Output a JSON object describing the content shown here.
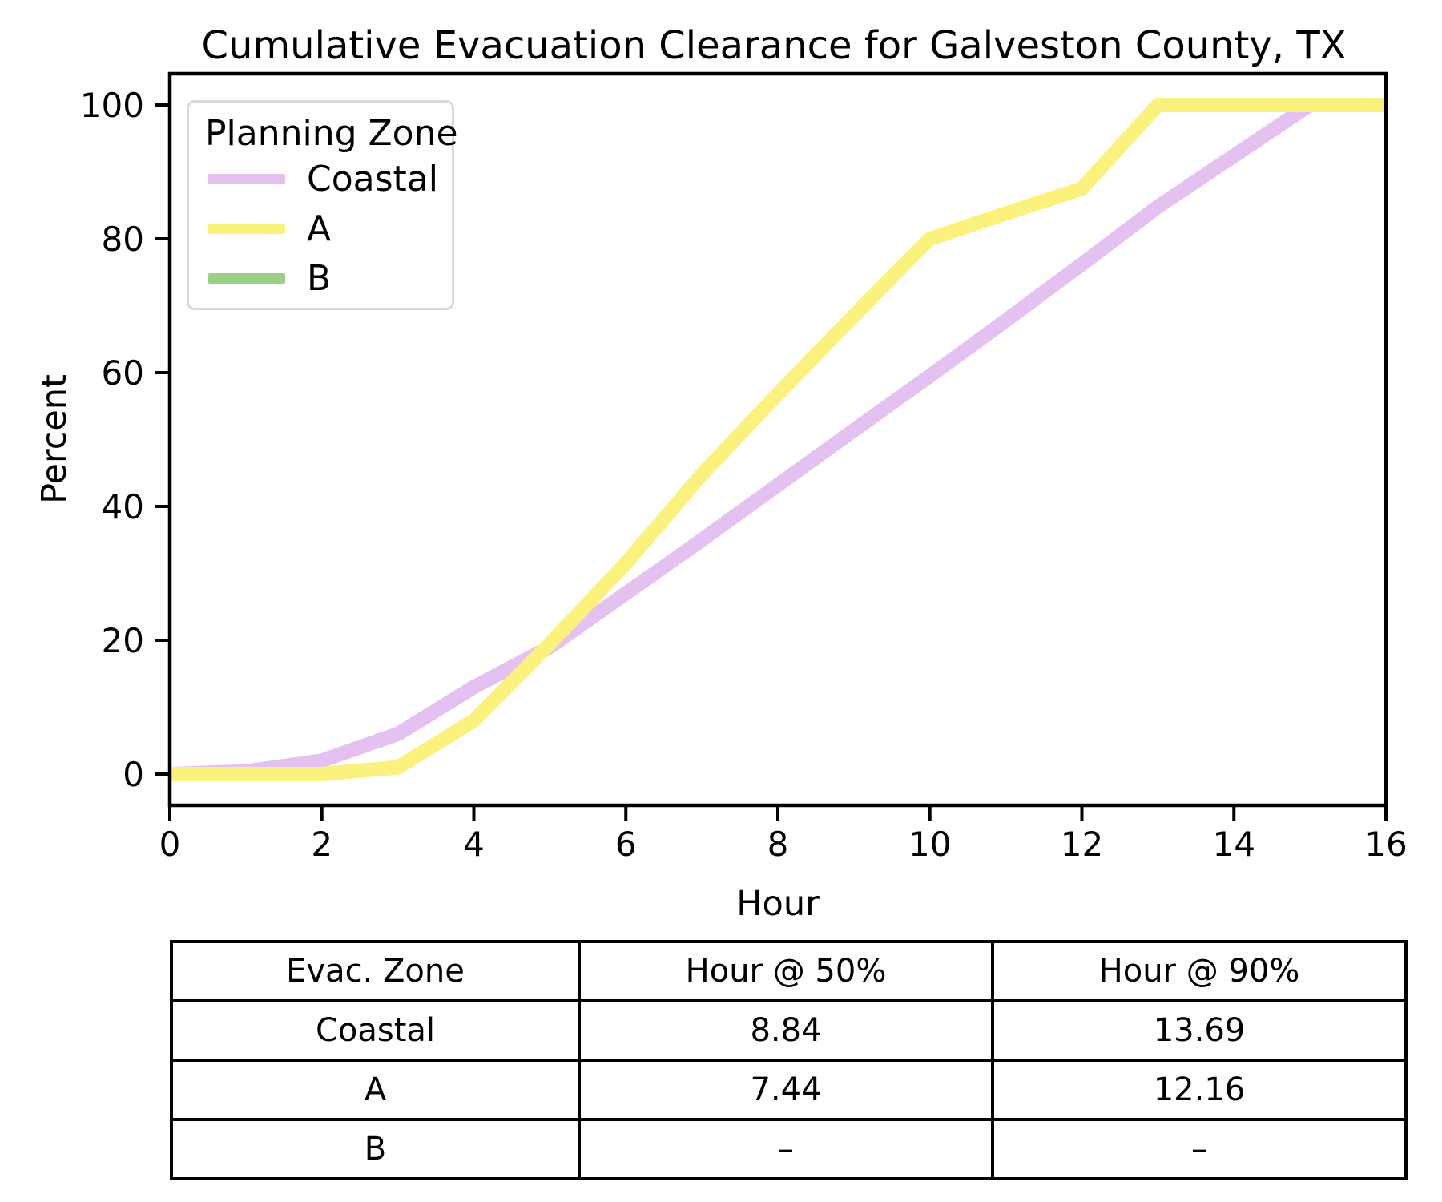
{
  "title": "Cumulative Evacuation Clearance for Galveston County, TX",
  "chart_data": {
    "type": "line",
    "title": "Cumulative Evacuation Clearance for Galveston County, TX",
    "xlabel": "Hour",
    "ylabel": "Percent",
    "x": [
      0,
      1,
      2,
      3,
      4,
      5,
      6,
      7,
      8,
      9,
      10,
      11,
      12,
      13,
      14,
      15,
      16
    ],
    "xlim": [
      0,
      16
    ],
    "ylim": [
      0,
      100
    ],
    "xticks": [
      0,
      2,
      4,
      6,
      8,
      10,
      12,
      14,
      16
    ],
    "yticks": [
      0,
      20,
      40,
      60,
      80,
      100
    ],
    "grid": false,
    "legend": {
      "title": "Planning Zone",
      "position": "upper left"
    },
    "series": [
      {
        "name": "Coastal",
        "color": "#e5c1f2",
        "values": [
          0,
          0.4,
          2,
          6,
          13,
          19,
          27,
          35,
          43.2,
          51.4,
          59.5,
          67.8,
          76.2,
          84.8,
          92.4,
          100,
          100
        ]
      },
      {
        "name": "A",
        "color": "#fbf17d",
        "values": [
          0,
          0,
          0,
          1,
          8,
          19.5,
          31.5,
          44.8,
          56.8,
          68.5,
          80,
          83.8,
          87.5,
          100,
          100,
          100,
          100
        ]
      },
      {
        "name": "B",
        "color": "#9bd084",
        "values": null
      }
    ]
  },
  "summary_table": {
    "columns": [
      "Evac. Zone",
      "Hour @ 50%",
      "Hour @ 90%"
    ],
    "rows": [
      [
        "Coastal",
        "8.84",
        "13.69"
      ],
      [
        "A",
        "7.44",
        "12.16"
      ],
      [
        "B",
        "–",
        "–"
      ]
    ]
  }
}
